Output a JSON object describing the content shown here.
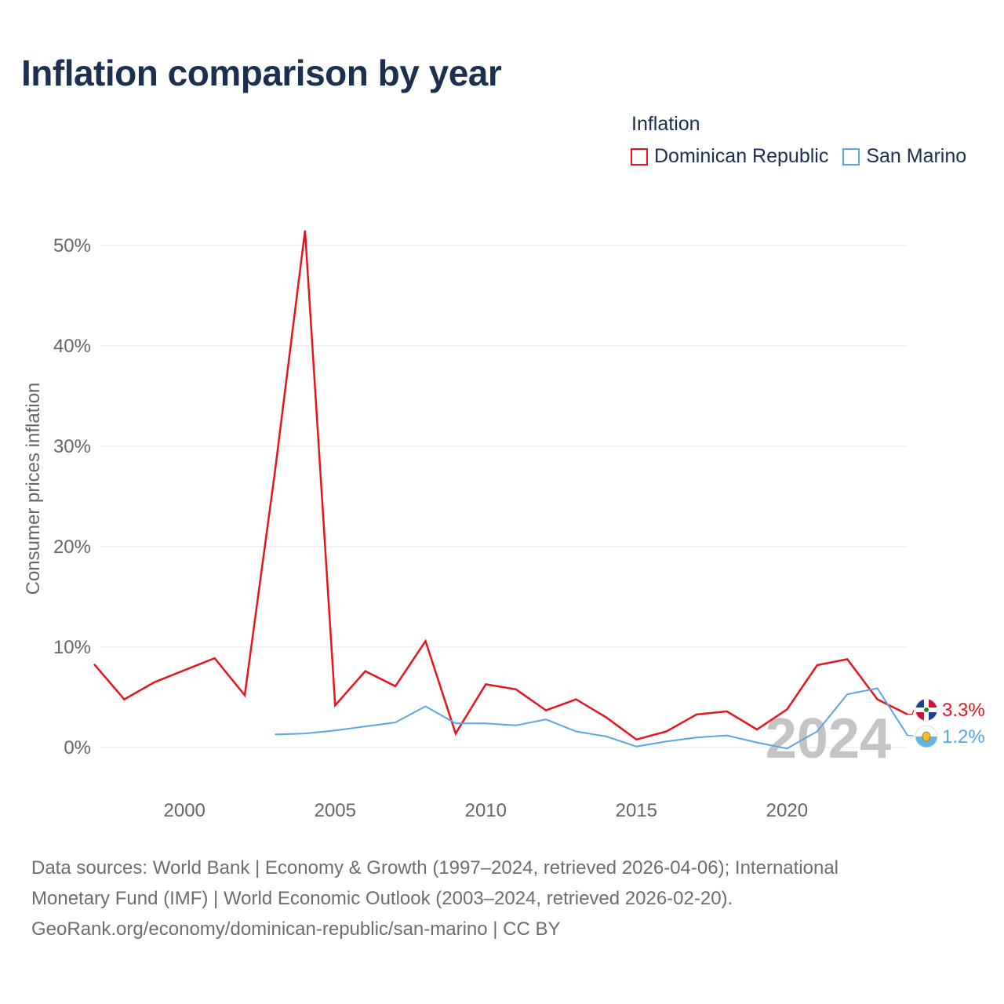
{
  "title": "Inflation comparison by year",
  "legend": {
    "title": "Inflation",
    "items": [
      {
        "label": "Dominican Republic",
        "color": "#e8131b"
      },
      {
        "label": "San Marino",
        "color": "#5aa5e6"
      }
    ]
  },
  "chart_data": {
    "type": "line",
    "ylabel": "Consumer prices inflation",
    "xlabel": "",
    "xlim": [
      1997,
      2024
    ],
    "ylim": [
      -3.5,
      53
    ],
    "xticks": [
      2000,
      2005,
      2010,
      2015,
      2020
    ],
    "yticks": [
      0,
      10,
      20,
      30,
      40,
      50
    ],
    "ytick_labels": [
      "0%",
      "10%",
      "20%",
      "30%",
      "40%",
      "50%"
    ],
    "grid": true,
    "watermark_year": "2024",
    "series": [
      {
        "name": "Dominican Republic",
        "color": "#e8131b",
        "end_label": "3.3%",
        "flag_icon": "dominican-republic-flag-icon",
        "x": [
          1997,
          1998,
          1999,
          2000,
          2001,
          2002,
          2003,
          2004,
          2005,
          2006,
          2007,
          2008,
          2009,
          2010,
          2011,
          2012,
          2013,
          2014,
          2015,
          2016,
          2017,
          2018,
          2019,
          2020,
          2021,
          2022,
          2023,
          2024
        ],
        "values": [
          8.3,
          4.8,
          6.5,
          7.7,
          8.9,
          5.2,
          27.4,
          51.5,
          4.2,
          7.6,
          6.1,
          10.6,
          1.4,
          6.3,
          5.8,
          3.7,
          4.8,
          3.0,
          0.8,
          1.6,
          3.3,
          3.6,
          1.8,
          3.8,
          8.2,
          8.8,
          4.8,
          3.3
        ]
      },
      {
        "name": "San Marino",
        "color": "#5aa5e6",
        "end_label": "1.2%",
        "flag_icon": "san-marino-flag-icon",
        "x": [
          2003,
          2004,
          2005,
          2006,
          2007,
          2008,
          2009,
          2010,
          2011,
          2012,
          2013,
          2014,
          2015,
          2016,
          2017,
          2018,
          2019,
          2020,
          2021,
          2022,
          2023,
          2024
        ],
        "values": [
          1.3,
          1.4,
          1.7,
          2.1,
          2.5,
          4.1,
          2.4,
          2.4,
          2.2,
          2.8,
          1.6,
          1.1,
          0.1,
          0.6,
          1.0,
          1.2,
          0.5,
          -0.1,
          1.6,
          5.3,
          5.9,
          1.2
        ]
      }
    ]
  },
  "footer": {
    "line1": "Data sources: World Bank | Economy & Growth (1997–2024, retrieved 2026-04-06); International",
    "line2": "Monetary Fund (IMF) | World Economic Outlook (2003–2024, retrieved 2026-02-20).",
    "line3": "GeoRank.org/economy/dominican-republic/san-marino | CC BY"
  }
}
